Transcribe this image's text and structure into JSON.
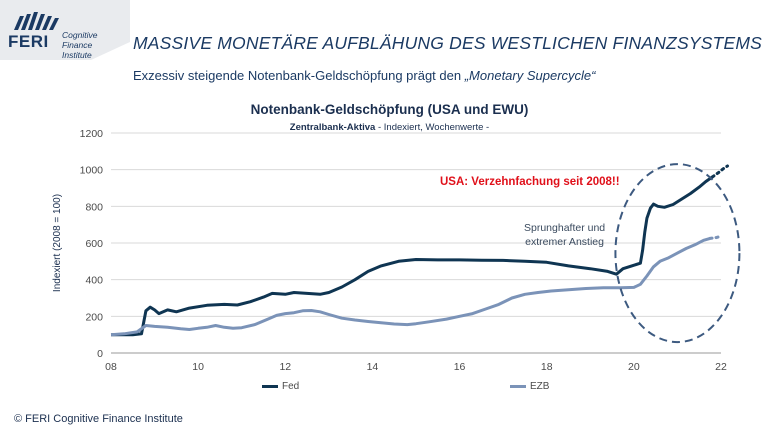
{
  "header": {
    "logo_brand": "FERI",
    "logo_line1": "Cognitive",
    "logo_line2": "Finance",
    "logo_line3": "Institute",
    "title": "MASSIVE MONETÄRE AUFBLÄHUNG DES WESTLICHEN FINANZSYSTEMS",
    "subtitle_prefix": "Exzessiv steigende Notenbank-Geldschöpfung prägt den ",
    "subtitle_italic": "„Monetary Supercycle“"
  },
  "footer": {
    "copyright": "© FERI Cognitive Finance Institute"
  },
  "annotations": {
    "usa": "USA: Verzehnfachung  seit 2008!!",
    "jump_line1": "Sprunghafter und",
    "jump_line2": "extremer Anstieg"
  },
  "colors": {
    "fed": "#0f3552",
    "ezb": "#7b93b8",
    "highlight_ellipse": "#3d5a80",
    "title_blue": "#1b3a63"
  },
  "chart_data": {
    "type": "line",
    "title": "Notenbank-Geldschöpfung (USA und EWU)",
    "subtitle_bold": "Zentralbank-Aktiva",
    "subtitle_rest": " - Indexiert, Wochenwerte -",
    "ylabel": "Indexiert (2008 = 100)",
    "xlabel": "",
    "xlim": [
      8,
      22
    ],
    "ylim": [
      0,
      1200
    ],
    "x_ticks": [
      "08",
      "10",
      "12",
      "14",
      "16",
      "18",
      "20",
      "22"
    ],
    "y_ticks": [
      "0",
      "200",
      "400",
      "600",
      "800",
      "1000",
      "1200"
    ],
    "grid": "horizontal",
    "legend_position": "bottom",
    "series": [
      {
        "name": "Fed",
        "color": "#0f3552",
        "points": [
          [
            8.0,
            100
          ],
          [
            8.5,
            100
          ],
          [
            8.7,
            105
          ],
          [
            8.8,
            230
          ],
          [
            8.9,
            250
          ],
          [
            9.0,
            235
          ],
          [
            9.1,
            215
          ],
          [
            9.3,
            235
          ],
          [
            9.5,
            225
          ],
          [
            9.8,
            245
          ],
          [
            10.2,
            260
          ],
          [
            10.6,
            265
          ],
          [
            10.9,
            262
          ],
          [
            11.2,
            280
          ],
          [
            11.5,
            305
          ],
          [
            11.7,
            325
          ],
          [
            12.0,
            320
          ],
          [
            12.2,
            330
          ],
          [
            12.5,
            325
          ],
          [
            12.8,
            320
          ],
          [
            13.0,
            330
          ],
          [
            13.3,
            360
          ],
          [
            13.6,
            400
          ],
          [
            13.9,
            445
          ],
          [
            14.2,
            475
          ],
          [
            14.6,
            500
          ],
          [
            15.0,
            510
          ],
          [
            15.5,
            508
          ],
          [
            16.0,
            508
          ],
          [
            16.5,
            506
          ],
          [
            17.0,
            505
          ],
          [
            17.5,
            500
          ],
          [
            18.0,
            495
          ],
          [
            18.5,
            475
          ],
          [
            19.0,
            460
          ],
          [
            19.4,
            445
          ],
          [
            19.6,
            430
          ],
          [
            19.75,
            460
          ],
          [
            19.95,
            475
          ],
          [
            20.15,
            490
          ],
          [
            20.2,
            560
          ],
          [
            20.25,
            660
          ],
          [
            20.3,
            735
          ],
          [
            20.38,
            790
          ],
          [
            20.45,
            812
          ],
          [
            20.55,
            800
          ],
          [
            20.7,
            795
          ],
          [
            20.9,
            810
          ],
          [
            21.1,
            840
          ],
          [
            21.3,
            870
          ],
          [
            21.5,
            905
          ],
          [
            21.65,
            935
          ],
          [
            21.8,
            960
          ]
        ],
        "projection": [
          [
            21.8,
            960
          ],
          [
            21.95,
            985
          ],
          [
            22.05,
            1005
          ],
          [
            22.15,
            1020
          ]
        ]
      },
      {
        "name": "EZB",
        "color": "#7b93b8",
        "points": [
          [
            8.0,
            100
          ],
          [
            8.3,
            105
          ],
          [
            8.6,
            115
          ],
          [
            8.8,
            150
          ],
          [
            9.0,
            145
          ],
          [
            9.3,
            140
          ],
          [
            9.6,
            132
          ],
          [
            9.8,
            128
          ],
          [
            10.0,
            135
          ],
          [
            10.2,
            140
          ],
          [
            10.4,
            150
          ],
          [
            10.6,
            140
          ],
          [
            10.8,
            135
          ],
          [
            11.0,
            138
          ],
          [
            11.3,
            155
          ],
          [
            11.6,
            185
          ],
          [
            11.8,
            205
          ],
          [
            12.0,
            215
          ],
          [
            12.2,
            220
          ],
          [
            12.4,
            230
          ],
          [
            12.6,
            232
          ],
          [
            12.8,
            225
          ],
          [
            13.0,
            210
          ],
          [
            13.3,
            190
          ],
          [
            13.6,
            180
          ],
          [
            13.9,
            172
          ],
          [
            14.2,
            165
          ],
          [
            14.5,
            158
          ],
          [
            14.8,
            155
          ],
          [
            15.0,
            160
          ],
          [
            15.3,
            170
          ],
          [
            15.7,
            185
          ],
          [
            16.0,
            200
          ],
          [
            16.3,
            215
          ],
          [
            16.6,
            240
          ],
          [
            16.9,
            265
          ],
          [
            17.2,
            300
          ],
          [
            17.5,
            320
          ],
          [
            17.8,
            330
          ],
          [
            18.1,
            338
          ],
          [
            18.5,
            345
          ],
          [
            18.9,
            352
          ],
          [
            19.3,
            356
          ],
          [
            19.7,
            356
          ],
          [
            20.0,
            358
          ],
          [
            20.15,
            375
          ],
          [
            20.3,
            420
          ],
          [
            20.45,
            470
          ],
          [
            20.6,
            500
          ],
          [
            20.8,
            520
          ],
          [
            21.0,
            545
          ],
          [
            21.2,
            570
          ],
          [
            21.4,
            590
          ],
          [
            21.6,
            615
          ],
          [
            21.75,
            625
          ]
        ],
        "projection": [
          [
            21.75,
            625
          ],
          [
            21.9,
            630
          ],
          [
            22.0,
            637
          ]
        ]
      }
    ],
    "highlight": "dashed ellipse around 2020-2022 rise"
  }
}
